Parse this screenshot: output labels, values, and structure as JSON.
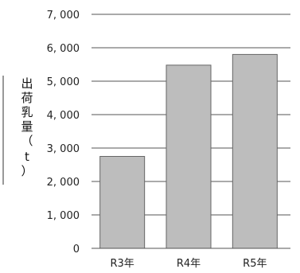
{
  "chart_data": {
    "type": "bar",
    "categories": [
      "R3年",
      "R4年",
      "R5年"
    ],
    "values": [
      2750,
      5480,
      5800
    ],
    "ylabel": "出荷乳量（t）",
    "ylim": [
      0,
      7000
    ],
    "yticks": [
      "0",
      "1, 000",
      "2, 000",
      "3, 000",
      "4, 000",
      "5, 000",
      "6, 000",
      "7, 000"
    ],
    "grid": true,
    "legend": "none",
    "colors": {
      "bar": "#bdbdbd",
      "bar_edge": "#666666",
      "grid": "#555555"
    }
  }
}
